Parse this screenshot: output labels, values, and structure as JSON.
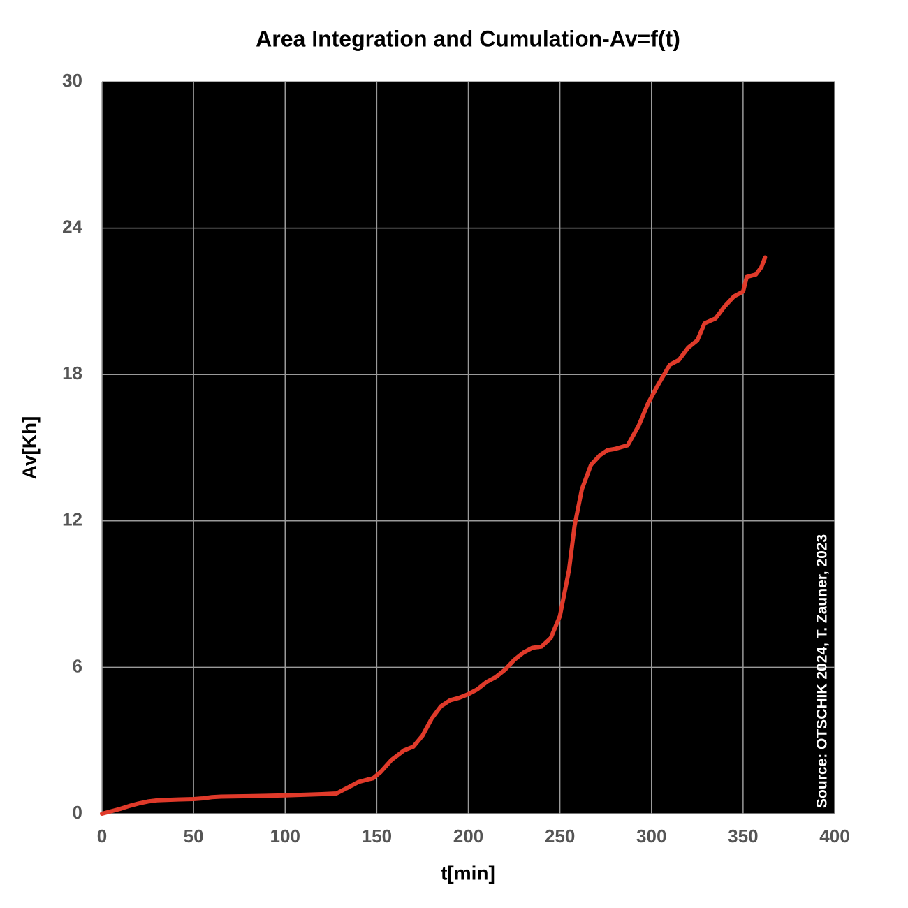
{
  "chart_data": {
    "type": "line",
    "title": "Area Integration and Cumulation-Av=f(t)",
    "xlabel": "t[min]",
    "ylabel": "Av[Kh]",
    "annotation": "Source: OTSCHIK 2024, T. Zauner, 2023",
    "x": [
      0,
      5,
      10,
      15,
      20,
      25,
      30,
      40,
      50,
      55,
      60,
      65,
      80,
      100,
      120,
      128,
      135,
      140,
      145,
      148,
      152,
      158,
      165,
      170,
      175,
      180,
      185,
      190,
      195,
      200,
      205,
      210,
      215,
      220,
      225,
      230,
      235,
      240,
      245,
      250,
      255,
      258,
      262,
      267,
      272,
      276,
      280,
      287,
      293,
      298,
      303,
      310,
      315,
      320,
      325,
      329,
      335,
      340,
      345,
      350,
      352,
      357,
      360,
      362
    ],
    "series": [
      {
        "name": "Av",
        "color": "#e03a2a",
        "values": [
          0,
          0.1,
          0.2,
          0.32,
          0.42,
          0.5,
          0.55,
          0.58,
          0.6,
          0.63,
          0.68,
          0.7,
          0.72,
          0.75,
          0.8,
          0.83,
          1.1,
          1.3,
          1.4,
          1.45,
          1.7,
          2.2,
          2.6,
          2.75,
          3.2,
          3.9,
          4.4,
          4.65,
          4.75,
          4.9,
          5.1,
          5.4,
          5.6,
          5.9,
          6.3,
          6.6,
          6.8,
          6.85,
          7.2,
          8.1,
          10.0,
          11.8,
          13.3,
          14.3,
          14.7,
          14.9,
          14.95,
          15.1,
          15.9,
          16.8,
          17.5,
          18.4,
          18.6,
          19.1,
          19.4,
          20.1,
          20.3,
          20.8,
          21.2,
          21.4,
          22.0,
          22.1,
          22.4,
          22.8
        ]
      }
    ],
    "xlim": [
      0,
      400
    ],
    "xticks": [
      0,
      50,
      100,
      150,
      200,
      250,
      300,
      350,
      400
    ],
    "ylim": [
      0,
      30
    ],
    "yticks": [
      0,
      6,
      12,
      18,
      24,
      30
    ],
    "grid": true,
    "background": "#000000",
    "grid_color": "#9a9a9a"
  }
}
